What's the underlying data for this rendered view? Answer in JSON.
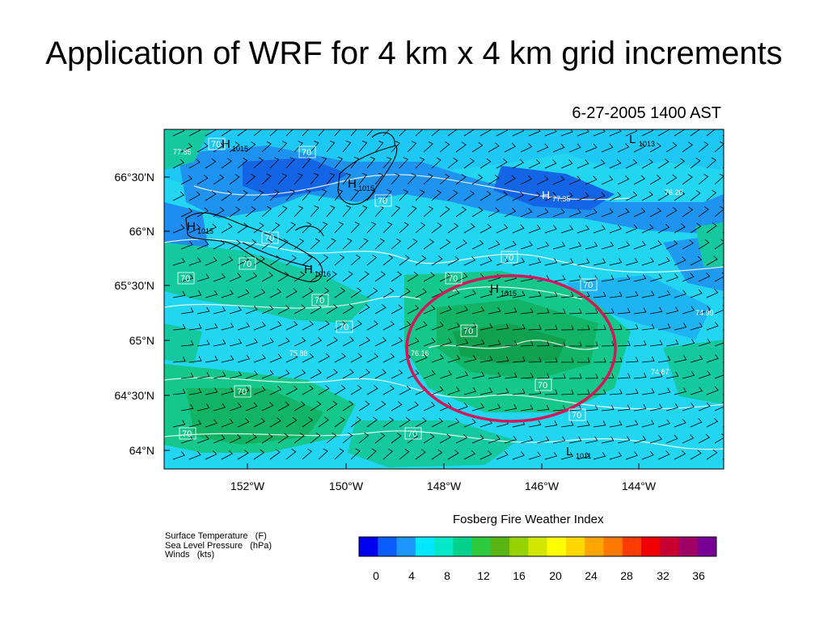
{
  "slide": {
    "title": "Application of WRF for 4 km x 4 km grid increments",
    "timestamp": "6-27-2005 1400 AST"
  },
  "map": {
    "lat_labels": [
      "66°30'N",
      "66°N",
      "65°30'N",
      "65°N",
      "64°30'N",
      "64°N"
    ],
    "lon_labels": [
      "152°W",
      "150°W",
      "148°W",
      "146°W",
      "144°W"
    ],
    "pressure_labels": [
      {
        "letter": "H",
        "value": "1015"
      },
      {
        "letter": "H",
        "value": "1015"
      },
      {
        "letter": "H",
        "value": "1015"
      },
      {
        "letter": "H",
        "value": "1016"
      },
      {
        "letter": "H",
        "value": "1015"
      },
      {
        "letter": "L",
        "value": "1013"
      },
      {
        "letter": "L",
        "value": "1011"
      }
    ],
    "temperature_box_labels": [
      "70",
      "70",
      "70",
      "70",
      "70",
      "70",
      "70",
      "70",
      "70",
      "70",
      "70",
      "70",
      "70",
      "70",
      "70",
      "70",
      "70"
    ],
    "temperature_extrema": [
      "77.85",
      "77.35",
      "76.20",
      "75.88",
      "76.16",
      "74.99",
      "74.87"
    ],
    "highlight": "red ellipse around 65°N 147°W"
  },
  "color_scale": {
    "title": "Fosberg Fire Weather Index",
    "ticks": [
      "0",
      "4",
      "8",
      "12",
      "16",
      "20",
      "24",
      "28",
      "32",
      "36"
    ],
    "colors": [
      "#0000f0",
      "#0a5cff",
      "#1e96ff",
      "#00e8ff",
      "#00e8c8",
      "#00d28c",
      "#2dc83c",
      "#5ab414",
      "#96d200",
      "#d2e600",
      "#ffff00",
      "#ffd700",
      "#ffa500",
      "#ff7800",
      "#ff3c00",
      "#f00000",
      "#c80032",
      "#a00064",
      "#780096"
    ]
  },
  "legend_notes": {
    "line1": "Surface Temperature   (F)",
    "line2": "Sea Level Pressure   (hPa)",
    "line3": "Winds   (kts)"
  },
  "colors": {
    "ellipse": "#d6145a",
    "map_base": "#20d8f0"
  }
}
